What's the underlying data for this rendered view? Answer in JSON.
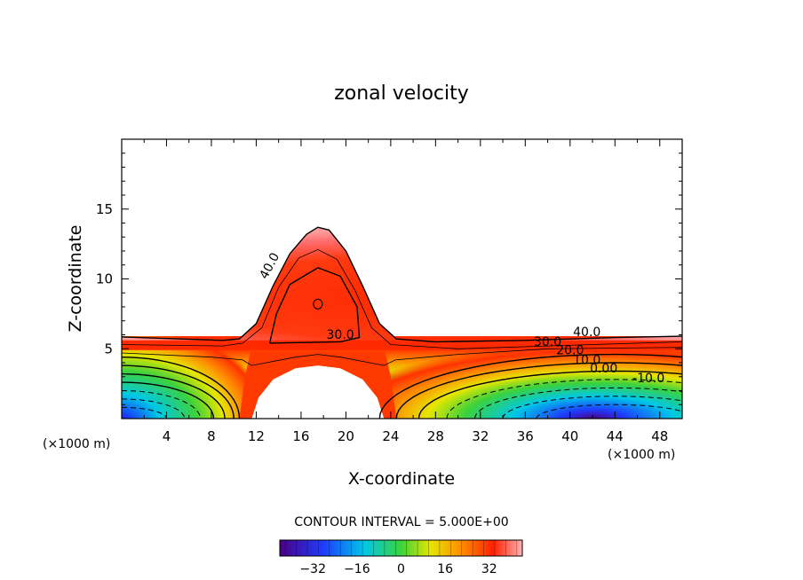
{
  "chart_data": {
    "type": "contour",
    "title": "zonal velocity",
    "xlabel": "X-coordinate",
    "ylabel": "Z-coordinate",
    "x_scale_note": "(×1000 m)",
    "y_scale_note": "(×1000 m)",
    "xlim": [
      0,
      50
    ],
    "ylim": [
      0,
      20
    ],
    "x_ticks": [
      4,
      8,
      12,
      16,
      20,
      24,
      28,
      32,
      36,
      40,
      44,
      48
    ],
    "y_ticks": [
      5,
      10,
      15
    ],
    "contour_interval_text": "CONTOUR INTERVAL = 5.000E+00",
    "contour_interval": 5,
    "contour_labels": [
      {
        "text": "40.0",
        "x": 13.5,
        "z": 10.8
      },
      {
        "text": "30.0",
        "x": 19.5,
        "z": 5.7
      },
      {
        "text": "40.0",
        "x": 41.5,
        "z": 5.9
      },
      {
        "text": "30.0",
        "x": 38.0,
        "z": 5.2
      },
      {
        "text": "20.0",
        "x": 40.0,
        "z": 4.6
      },
      {
        "text": "10.0",
        "x": 41.5,
        "z": 3.9
      },
      {
        "text": "0.00",
        "x": 43.0,
        "z": 3.3
      },
      {
        "text": "-10.0",
        "x": 47.0,
        "z": 2.6
      }
    ],
    "features": {
      "jet_core_max_x": 17.5,
      "jet_core_max_z": 8.2,
      "low_values_region": "bottom-right, minimum near x=44, z=0",
      "masked_hill": {
        "x_from": 11.5,
        "x_to": 23.5,
        "peak_z": 3.8
      }
    },
    "colorbar": {
      "ticks": [
        -32,
        -16,
        0,
        16,
        32
      ],
      "min": -44,
      "max": 44,
      "colormap": "rainbow (violet-blue-cyan-green-yellow-orange-red-pink)"
    },
    "colors": {
      "violet": "#4b0082",
      "blue": "#1e3cff",
      "cyan": "#00c8e6",
      "green": "#3cd23c",
      "yellow": "#e6e600",
      "orange": "#ff8c00",
      "red": "#ff3200",
      "pink": "#ffb4b4"
    }
  }
}
